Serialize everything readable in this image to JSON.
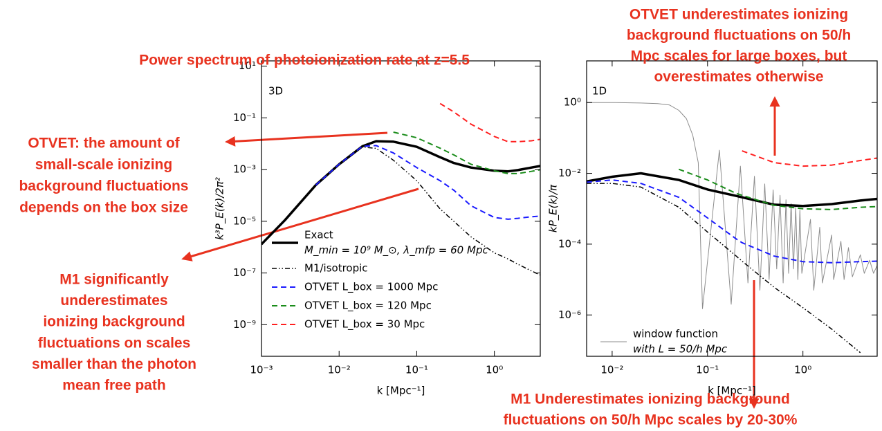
{
  "chart_data": [
    {
      "type": "line",
      "panel_label": "3D",
      "xlabel": "k [Mpc⁻¹]",
      "ylabel": "k³P_E(k)/2π²",
      "log_x": true,
      "log_y": true,
      "grid": false,
      "legend": "lower left",
      "xlim": [
        0.001,
        3.9
      ],
      "ylim": [
        6e-11,
        16
      ],
      "xticks": [
        {
          "value": 0.001,
          "label": "10⁻³"
        },
        {
          "value": 0.01,
          "label": "10⁻²"
        },
        {
          "value": 0.1,
          "label": "10⁻¹"
        },
        {
          "value": 1,
          "label": "10⁰"
        }
      ],
      "yticks": [
        {
          "value": 10,
          "label": "10¹"
        },
        {
          "value": 0.1,
          "label": "10⁻¹"
        },
        {
          "value": 0.001,
          "label": "10⁻³"
        },
        {
          "value": 1e-05,
          "label": "10⁻⁵"
        },
        {
          "value": 1e-07,
          "label": "10⁻⁷"
        },
        {
          "value": 1e-09,
          "label": "10⁻⁹"
        }
      ],
      "x": [
        0.001,
        0.002,
        0.005,
        0.01,
        0.02,
        0.03,
        0.05,
        0.1,
        0.2,
        0.3,
        0.5,
        1,
        1.5,
        2,
        3,
        4
      ],
      "series": [
        {
          "name": "Exact",
          "legend_note": "M_min = 10⁹ M_⊙,  λ_mfp = 60 Mpc",
          "color": "#000000",
          "linestyle": "solid",
          "linewidth": 3.5,
          "values": [
            1.3e-06,
            1.1e-05,
            0.00025,
            0.0016,
            0.008,
            0.0125,
            0.012,
            0.0076,
            0.003,
            0.0018,
            0.0012,
            0.0009,
            0.00085,
            0.00095,
            0.0012,
            0.0014
          ]
        },
        {
          "name": "M1/isotropic",
          "color": "#000000",
          "linestyle": "dashdot",
          "linewidth": 1.5,
          "values": [
            null,
            null,
            0.00025,
            0.0016,
            0.0075,
            0.0066,
            0.0023,
            0.00037,
            3e-05,
            1e-05,
            2.5e-06,
            6e-07,
            3.5e-07,
            2.2e-07,
            1.2e-07,
            8e-08
          ]
        },
        {
          "name": "OTVET L_box = 1000 Mpc",
          "color": "#1a1aff",
          "linestyle": "dashed",
          "linewidth": 2,
          "values": [
            null,
            null,
            0.00025,
            0.0016,
            0.008,
            0.0085,
            0.0044,
            0.0012,
            0.00037,
            0.00016,
            4e-05,
            1.4e-05,
            1.2e-05,
            1.3e-05,
            1.5e-05,
            1.6e-05
          ]
        },
        {
          "name": "OTVET L_box = 120 Mpc",
          "color": "#1a8c1a",
          "linestyle": "dashed",
          "linewidth": 2,
          "values": [
            null,
            null,
            null,
            null,
            null,
            null,
            0.028,
            0.017,
            0.0067,
            0.0037,
            0.0016,
            0.0009,
            0.0007,
            0.0007,
            0.00085,
            0.001
          ]
        },
        {
          "name": "OTVET L_box = 30 Mpc",
          "color": "#ff2020",
          "linestyle": "dashed",
          "linewidth": 2,
          "values": [
            null,
            null,
            null,
            null,
            null,
            null,
            null,
            null,
            0.36,
            0.17,
            0.057,
            0.019,
            0.012,
            0.012,
            0.013,
            0.015
          ]
        }
      ]
    },
    {
      "type": "line",
      "panel_label": "1D",
      "xlabel": "k [Mpc⁻¹]",
      "ylabel": "kP_E(k)/π",
      "log_x": true,
      "log_y": true,
      "grid": false,
      "legend": "lower left",
      "xlim": [
        0.0054,
        6
      ],
      "ylim": [
        6.8e-08,
        15
      ],
      "xticks": [
        {
          "value": 0.01,
          "label": "10⁻²"
        },
        {
          "value": 0.1,
          "label": "10⁻¹"
        },
        {
          "value": 1,
          "label": "10⁰"
        }
      ],
      "yticks": [
        {
          "value": 1,
          "label": "10⁰"
        },
        {
          "value": 0.01,
          "label": "10⁻²"
        },
        {
          "value": 0.0001,
          "label": "10⁻⁴"
        },
        {
          "value": 1e-06,
          "label": "10⁻⁶"
        }
      ],
      "x": [
        0.0054,
        0.01,
        0.02,
        0.05,
        0.1,
        0.2,
        0.23,
        0.5,
        1,
        2,
        4,
        6
      ],
      "series": [
        {
          "name": "window function",
          "legend_note": "with L = 50/h Mpc",
          "color": "#8c8c8c",
          "linestyle": "solid",
          "linewidth": 1,
          "x": [
            0.0054,
            0.01,
            0.02,
            0.03,
            0.04,
            0.05,
            0.06,
            0.07,
            0.08,
            0.0885,
            0.133,
            0.177,
            0.221,
            0.265,
            0.31,
            0.354,
            0.398,
            0.442,
            0.487,
            0.531,
            0.575,
            0.62,
            0.664,
            0.708,
            0.752,
            0.796,
            0.841,
            0.885,
            0.93,
            0.974,
            1.2,
            1.3,
            1.5,
            1.6,
            2,
            2.1,
            2.5,
            2.7,
            3,
            3.3,
            4,
            4.4,
            5,
            5.5,
            6
          ],
          "values": [
            1,
            1,
            0.97,
            0.93,
            0.85,
            0.6,
            0.35,
            0.12,
            0.02,
            1.5e-06,
            0.045,
            2e-06,
            0.016,
            8e-06,
            0.0083,
            5e-06,
            0.005,
            1e-05,
            0.0034,
            2e-05,
            0.0024,
            8e-06,
            0.0018,
            1.5e-05,
            0.0014,
            2e-05,
            0.0011,
            1e-05,
            0.00092,
            1.5e-05,
            0.0005,
            5e-06,
            0.0003,
            8e-06,
            0.00018,
            1e-05,
            0.00012,
            1e-05,
            8e-05,
            1.2e-05,
            5e-05,
            1.5e-05,
            3.5e-05,
            1.5e-05,
            2.5e-05
          ]
        },
        {
          "color": "#000000",
          "linestyle": "solid",
          "linewidth": 3.5,
          "values": [
            0.0059,
            0.008,
            0.01,
            0.0065,
            0.0035,
            0.0023,
            0.0021,
            0.0013,
            0.0012,
            0.00135,
            0.0017,
            0.0019
          ]
        },
        {
          "color": "#000000",
          "linestyle": "dashdot",
          "linewidth": 1.5,
          "values": [
            0.0052,
            0.0052,
            0.0041,
            0.0011,
            0.00022,
            4.6e-05,
            3.3e-05,
            6e-06,
            1.6e-06,
            4e-07,
            8.6e-08,
            null
          ]
        },
        {
          "color": "#1a1aff",
          "linestyle": "dashed",
          "linewidth": 2,
          "values": [
            0.0056,
            0.0065,
            0.0052,
            0.0021,
            0.00055,
            0.00014,
            0.00011,
            4.6e-05,
            3.2e-05,
            3e-05,
            3.2e-05,
            3.3e-05
          ]
        },
        {
          "color": "#1a8c1a",
          "linestyle": "dashed",
          "linewidth": 2,
          "values": [
            null,
            null,
            null,
            0.013,
            0.0065,
            0.0027,
            0.0024,
            0.00125,
            0.001,
            0.00095,
            0.0011,
            0.00115
          ]
        },
        {
          "color": "#ff2020",
          "linestyle": "dashed",
          "linewidth": 2,
          "values": [
            null,
            null,
            null,
            null,
            null,
            null,
            0.043,
            0.02,
            0.016,
            0.017,
            0.023,
            0.027
          ]
        }
      ]
    }
  ],
  "annotations": [
    [
      "Power spectrum of photoionization rate at z=5.5"
    ],
    [
      "OTVET underestimates ionizing",
      "background fluctuations on 50/h",
      "Mpc scales for large boxes, but",
      "overestimates otherwise"
    ],
    [
      "OTVET: the amount of",
      "small-scale ionizing",
      "background fluctuations",
      "depends on the box size"
    ],
    [
      "M1 significantly",
      "underestimates",
      "ionizing background",
      "fluctuations on scales",
      "smaller than the photon",
      "mean free path"
    ],
    [
      "M1 Underestimates ionizing background",
      "fluctuations on 50/h Mpc scales by 20-30%"
    ]
  ]
}
